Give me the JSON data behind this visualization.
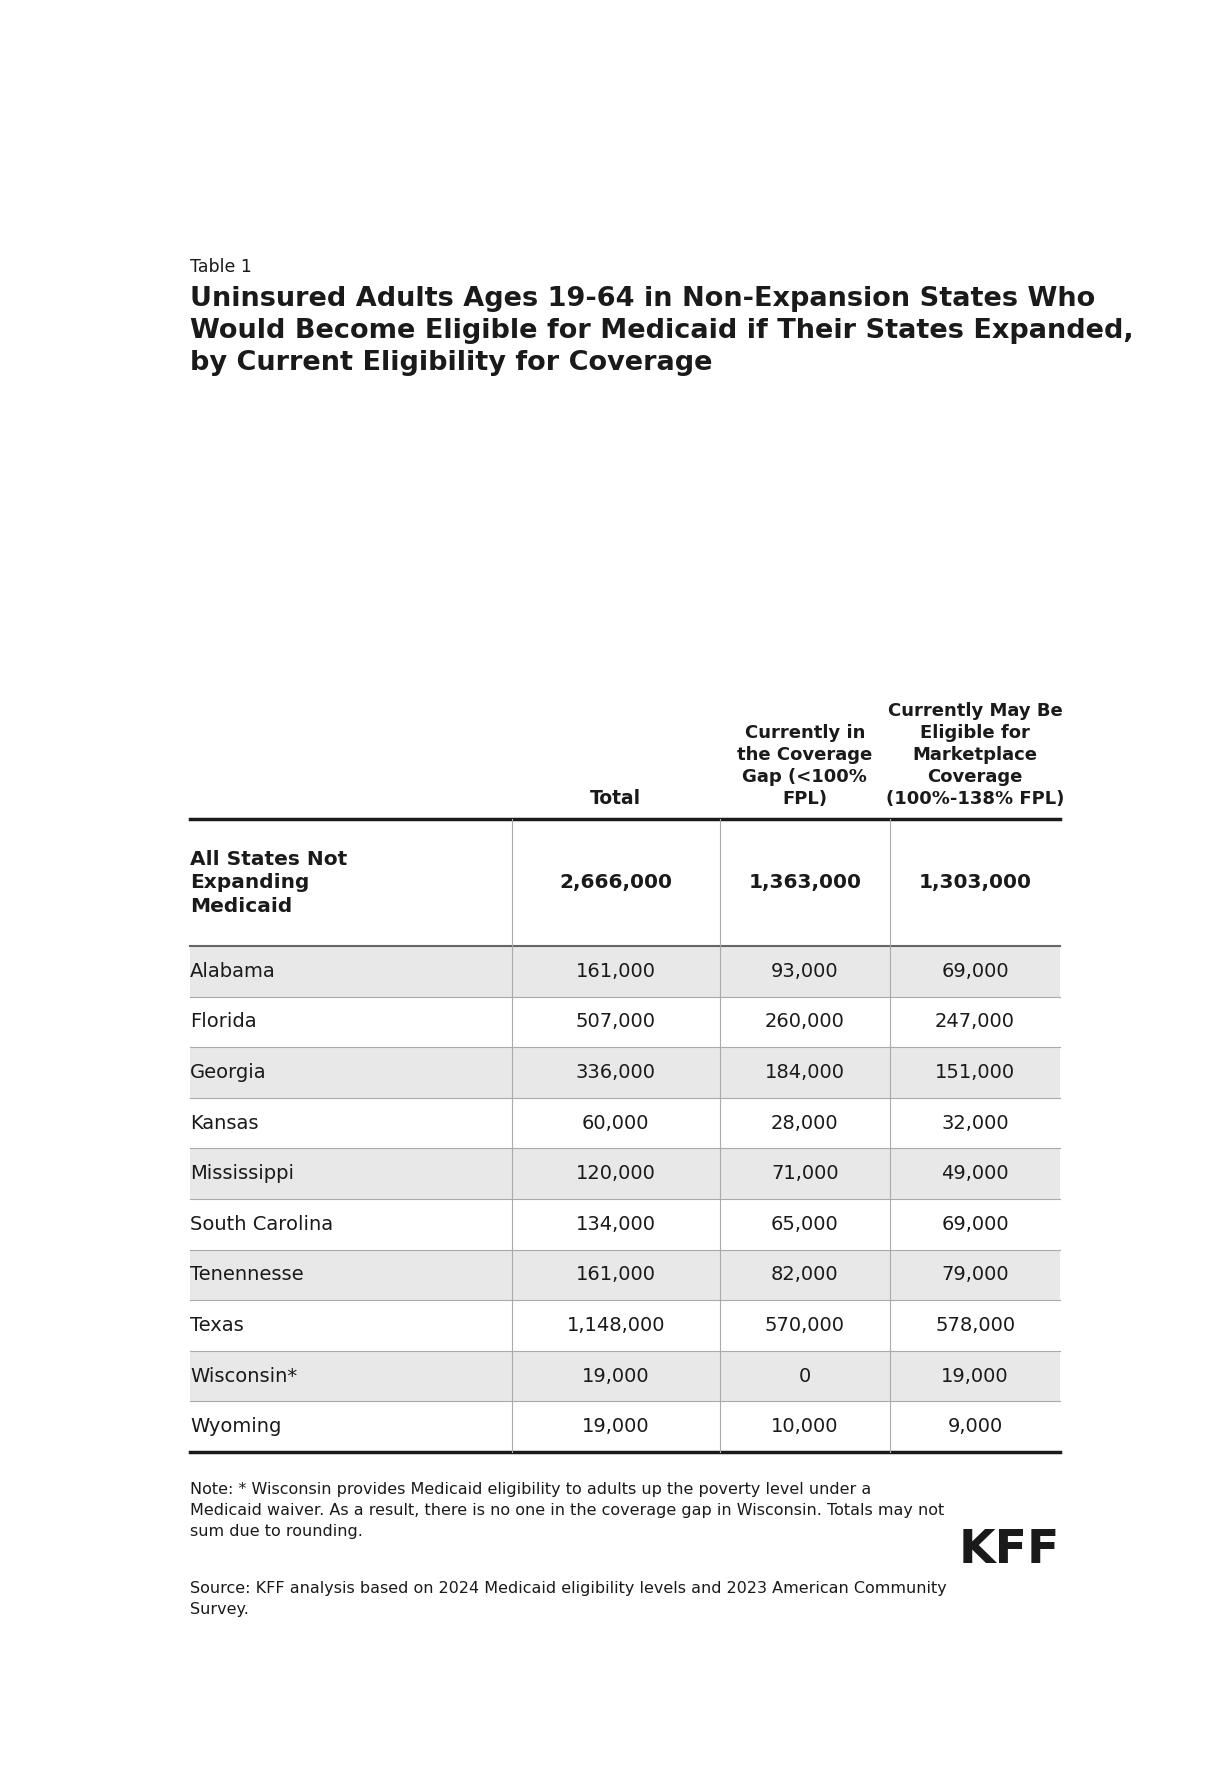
{
  "table_label": "Table 1",
  "title": "Uninsured Adults Ages 19-64 in Non-Expansion States Who\nWould Become Eligible for Medicaid if Their States Expanded,\nby Current Eligibility for Coverage",
  "col_headers": [
    "Total",
    "Currently in\nthe Coverage\nGap (<100%\nFPL)",
    "Currently May Be\nEligible for\nMarketplace\nCoverage\n(100%-138% FPL)"
  ],
  "rows": [
    {
      "label": "All States Not\nExpanding\nMedicaid",
      "values": [
        "2,666,000",
        "1,363,000",
        "1,303,000"
      ],
      "bold": true,
      "bg": "#ffffff"
    },
    {
      "label": "Alabama",
      "values": [
        "161,000",
        "93,000",
        "69,000"
      ],
      "bold": false,
      "bg": "#e8e8e8"
    },
    {
      "label": "Florida",
      "values": [
        "507,000",
        "260,000",
        "247,000"
      ],
      "bold": false,
      "bg": "#ffffff"
    },
    {
      "label": "Georgia",
      "values": [
        "336,000",
        "184,000",
        "151,000"
      ],
      "bold": false,
      "bg": "#e8e8e8"
    },
    {
      "label": "Kansas",
      "values": [
        "60,000",
        "28,000",
        "32,000"
      ],
      "bold": false,
      "bg": "#ffffff"
    },
    {
      "label": "Mississippi",
      "values": [
        "120,000",
        "71,000",
        "49,000"
      ],
      "bold": false,
      "bg": "#e8e8e8"
    },
    {
      "label": "South Carolina",
      "values": [
        "134,000",
        "65,000",
        "69,000"
      ],
      "bold": false,
      "bg": "#ffffff"
    },
    {
      "label": "Tenennesse",
      "values": [
        "161,000",
        "82,000",
        "79,000"
      ],
      "bold": false,
      "bg": "#e8e8e8"
    },
    {
      "label": "Texas",
      "values": [
        "1,148,000",
        "570,000",
        "578,000"
      ],
      "bold": false,
      "bg": "#ffffff"
    },
    {
      "label": "Wisconsin*",
      "values": [
        "19,000",
        "0",
        "19,000"
      ],
      "bold": false,
      "bg": "#e8e8e8"
    },
    {
      "label": "Wyoming",
      "values": [
        "19,000",
        "10,000",
        "9,000"
      ],
      "bold": false,
      "bg": "#ffffff"
    }
  ],
  "note": "Note: * Wisconsin provides Medicaid eligibility to adults up the poverty level under a\nMedicaid waiver. As a result, there is no one in the coverage gap in Wisconsin. Totals may not\nsum due to rounding.",
  "source": "Source: KFF analysis based on 2024 Medicaid eligibility levels and 2023 American Community\nSurvey.",
  "kff_logo": "KFF",
  "bg_color": "#ffffff",
  "text_color": "#1a1a1a"
}
